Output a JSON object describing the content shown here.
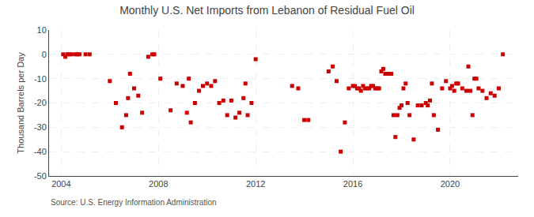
{
  "chart_data": {
    "type": "scatter",
    "title": "Monthly U.S. Net Imports from Lebanon of Residual Fuel Oil",
    "ylabel": "Thousand Barrels per Day",
    "annotations": [
      "Source: U.S. Energy Information Administration"
    ],
    "color": "#cc0000",
    "marker": "square",
    "grid": true,
    "xlim": [
      2003.5,
      2022.8
    ],
    "xticks": [
      2004,
      2008,
      2012,
      2016,
      2020
    ],
    "ylim": [
      -50,
      10
    ],
    "yticks": [
      -50,
      -40,
      -30,
      -20,
      -10,
      0,
      10
    ],
    "x": [
      2004.08,
      2004.17,
      2004.25,
      2004.33,
      2004.42,
      2004.58,
      2004.67,
      2004.75,
      2005.0,
      2005.17,
      2007.58,
      2007.75,
      2007.83,
      2006.0,
      2006.25,
      2006.5,
      2006.67,
      2006.75,
      2006.83,
      2007.0,
      2007.17,
      2007.33,
      2008.08,
      2008.5,
      2008.75,
      2009.0,
      2009.17,
      2009.33,
      2009.5,
      2009.67,
      2009.83,
      2010.0,
      2010.17,
      2010.33,
      2010.5,
      2010.67,
      2010.83,
      2011.0,
      2011.17,
      2011.33,
      2011.5,
      2011.58,
      2011.67,
      2011.83,
      2012.0,
      2009.25,
      2013.5,
      2013.75,
      2014.0,
      2014.17,
      2015.0,
      2015.17,
      2015.33,
      2015.5,
      2015.67,
      2015.83,
      2016.0,
      2016.08,
      2016.17,
      2016.25,
      2016.33,
      2016.42,
      2016.5,
      2016.58,
      2016.67,
      2016.75,
      2016.83,
      2016.92,
      2017.0,
      2017.08,
      2017.17,
      2017.25,
      2017.33,
      2017.42,
      2017.5,
      2017.58,
      2017.67,
      2017.75,
      2017.83,
      2017.92,
      2018.0,
      2018.08,
      2018.17,
      2018.25,
      2018.33,
      2018.5,
      2018.67,
      2018.83,
      2019.0,
      2019.08,
      2019.17,
      2019.25,
      2019.33,
      2019.5,
      2019.67,
      2019.83,
      2020.0,
      2020.08,
      2020.17,
      2020.25,
      2020.33,
      2020.5,
      2020.67,
      2020.75,
      2020.83,
      2020.92,
      2021.0,
      2021.08,
      2021.17,
      2021.33,
      2021.5,
      2021.67,
      2021.83,
      2022.0,
      2022.17
    ],
    "values": [
      0,
      -1,
      0,
      0,
      0,
      0,
      0,
      0,
      0,
      0,
      -1,
      0,
      0,
      -11,
      -20,
      -30,
      -25,
      -18,
      -8,
      -14,
      -17,
      -24,
      -10,
      -23,
      -12,
      -13,
      -24,
      -28,
      -20,
      -15,
      -13,
      -12,
      -13,
      -11,
      -20,
      -19,
      -25,
      -19,
      -26,
      -24,
      -18,
      -12,
      -25,
      -20,
      -2,
      -10,
      -13,
      -14,
      -27,
      -27,
      -7,
      -5,
      -11,
      -40,
      -28,
      -14,
      -13,
      -13,
      -14,
      -14,
      -15,
      -13,
      -14,
      -14,
      -14,
      -13,
      -13,
      -14,
      -14,
      -14,
      -7,
      -6,
      -8,
      -8,
      -8,
      -8,
      -25,
      -34,
      -25,
      -22,
      -21,
      -14,
      -12,
      -20,
      -25,
      -35,
      -21,
      -21,
      -20,
      -21,
      -19,
      -12,
      -25,
      -31,
      -14,
      -11,
      -14,
      -13,
      -15,
      -12,
      -12,
      -14,
      -15,
      -5,
      -15,
      -25,
      -10,
      -10,
      -14,
      -15,
      -18,
      -16,
      -17,
      -14,
      0
    ]
  }
}
